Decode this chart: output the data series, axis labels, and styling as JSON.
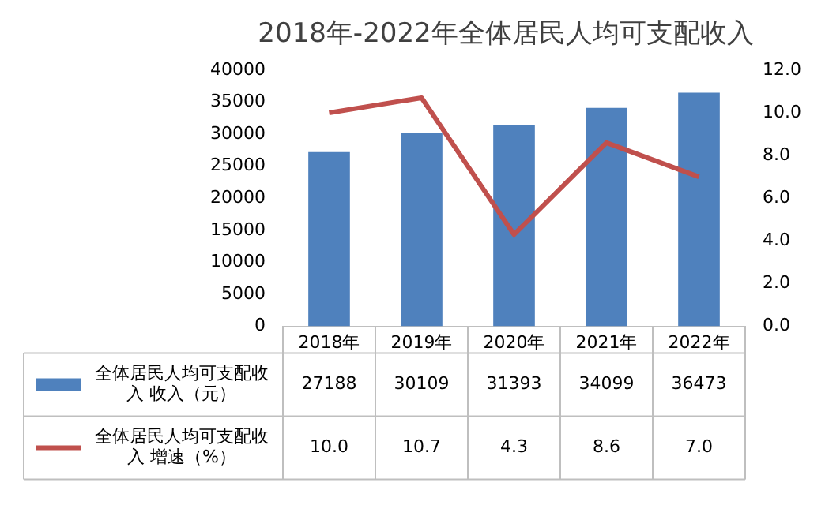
{
  "chart_data": {
    "type": "bar",
    "title": "2018年-2022年全体居民人均可支配收入",
    "categories": [
      "2018年",
      "2019年",
      "2020年",
      "2021年",
      "2022年"
    ],
    "series": [
      {
        "name": "全体居民人均可支配收入 收入（元）",
        "color": "#4f81bd",
        "values": [
          27188,
          30109,
          31393,
          34099,
          36473
        ],
        "value_labels": [
          "27188",
          "30109",
          "31393",
          "34099",
          "36473"
        ]
      },
      {
        "name": "全体居民人均可支配收入 增速（%）",
        "type": "line",
        "axis": "y2",
        "color": "#c0504d",
        "values": [
          10.0,
          10.7,
          4.3,
          8.6,
          7.0
        ],
        "value_labels": [
          "10.0",
          "10.7",
          "4.3",
          "8.6",
          "7.0"
        ]
      }
    ],
    "ylim": [
      0,
      40000
    ],
    "yticks": [
      0,
      5000,
      10000,
      15000,
      20000,
      25000,
      30000,
      35000,
      40000
    ],
    "y2lim": [
      0,
      12
    ],
    "y2ticks": [
      {
        "value": 0,
        "label": "0.0"
      },
      {
        "value": 2,
        "label": "2.0"
      },
      {
        "value": 4,
        "label": "4.0"
      },
      {
        "value": 6,
        "label": "6.0"
      },
      {
        "value": 8,
        "label": "8.0"
      },
      {
        "value": 10,
        "label": "10.0"
      },
      {
        "value": 12,
        "label": "12.0"
      }
    ],
    "legend": "bottom",
    "marker": "none",
    "line_style": "solid"
  }
}
